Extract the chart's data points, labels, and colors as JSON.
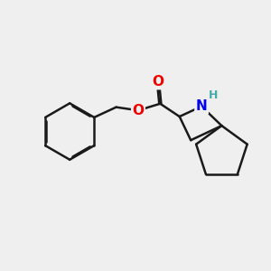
{
  "bg_color": "#efefef",
  "bond_color": "#1a1a1a",
  "bond_lw": 1.8,
  "dbo": 0.055,
  "atom_colors": {
    "O": "#ee0000",
    "N": "#0000ee",
    "H": "#44aaaa"
  },
  "font_size": 11,
  "fig_size": [
    3.0,
    3.0
  ],
  "dpi": 100,
  "xlim": [
    0,
    10
  ],
  "ylim": [
    0,
    10
  ]
}
